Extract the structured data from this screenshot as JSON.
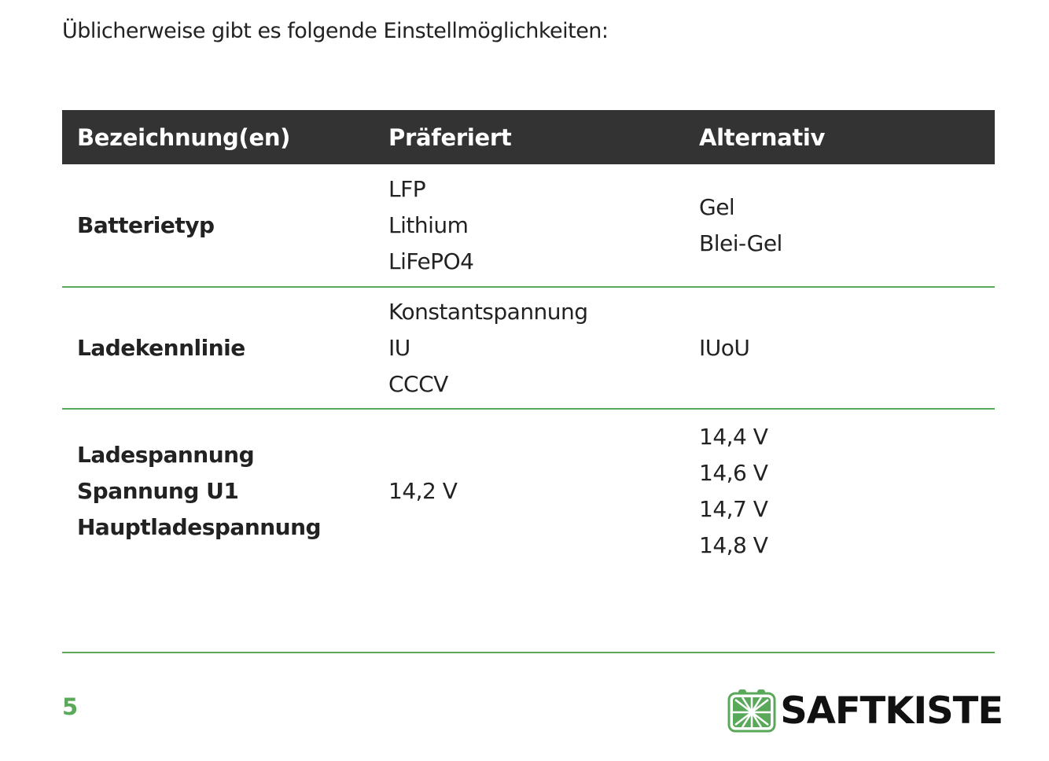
{
  "intro": "Üblicherweise gibt es folgende Einstellmöglichkeiten:",
  "table": {
    "headers": [
      "Bezeichnung(en)",
      "Präferiert",
      "Alternativ"
    ],
    "rows": [
      {
        "names": [
          "Batterietyp"
        ],
        "preferred": [
          "LFP",
          "Lithium",
          "LiFePO4"
        ],
        "alternative": [
          "Gel",
          "Blei-Gel"
        ]
      },
      {
        "names": [
          "Ladekennlinie"
        ],
        "preferred": [
          "Konstantspannung",
          "IU",
          "CCCV"
        ],
        "alternative": [
          "IUoU"
        ]
      },
      {
        "names": [
          "Ladespannung",
          "Spannung U1",
          "Hauptladespannung"
        ],
        "preferred": [
          "14,2 V"
        ],
        "alternative": [
          "14,4 V",
          "14,6 V",
          "14,7 V",
          "14,8 V"
        ]
      }
    ]
  },
  "footer": {
    "page_number": "5",
    "logo_text": "SAFTKISTE",
    "accent_color": "#5aa95a"
  }
}
